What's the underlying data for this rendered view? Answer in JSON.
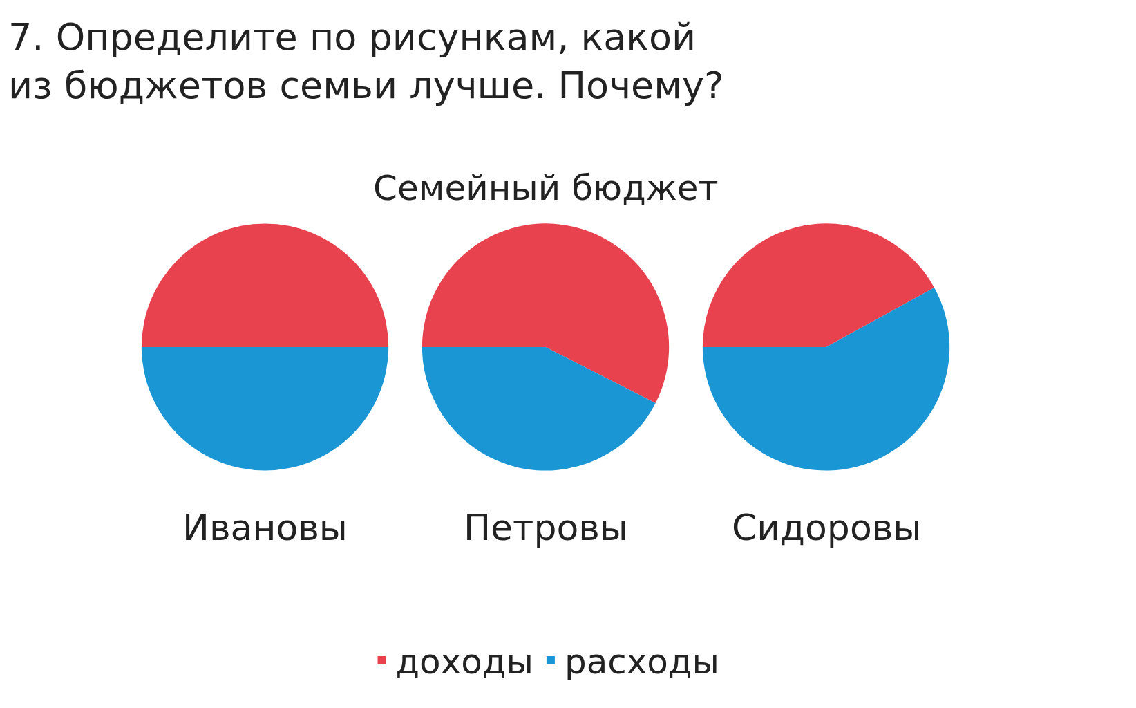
{
  "chart_data": {
    "type": "pie",
    "title": "Семейный бюджет",
    "categories": [
      "доходы",
      "расходы"
    ],
    "colors": [
      "#e8424e",
      "#1a96d4"
    ],
    "legend": "bottom",
    "series": [
      {
        "name": "Ивановы",
        "values": [
          50,
          50
        ]
      },
      {
        "name": "Петровы",
        "values": [
          57.5,
          42.5
        ]
      },
      {
        "name": "Сидоровы",
        "values": [
          42,
          58
        ]
      }
    ],
    "annotations": [
      "7. Определите по рисункам, какой из бюджетов семьи лучше. Почему?"
    ]
  }
}
